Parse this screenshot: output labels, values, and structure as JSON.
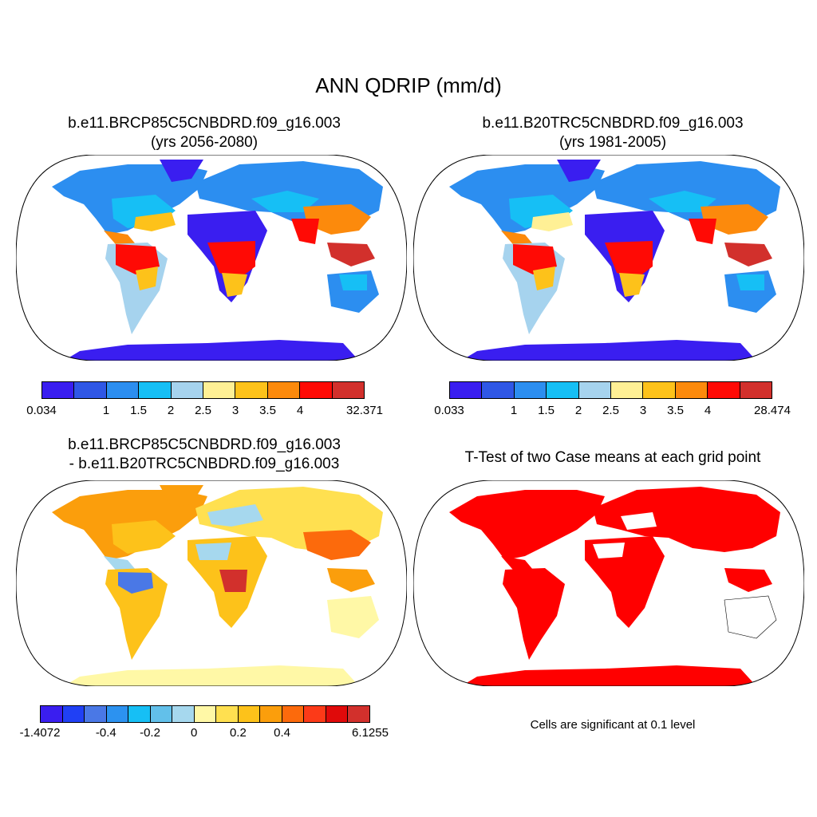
{
  "figure": {
    "title": "ANN QDRIP (mm/d)"
  },
  "panels": {
    "case1": {
      "line1": "b.e11.BRCP85C5CNBDRD.f09_g16.003",
      "line2": "(yrs 2056-2080)"
    },
    "case2": {
      "line1": "b.e11.B20TRC5CNBDRD.f09_g16.003",
      "line2": "(yrs 1981-2005)"
    },
    "diff": {
      "line1": "b.e11.BRCP85C5CNBDRD.f09_g16.003",
      "line2": "- b.e11.B20TRC5CNBDRD.f09_g16.003"
    },
    "ttest": {
      "line1": "T-Test of two Case means at each grid point",
      "note": "Cells are significant at 0.1 level"
    }
  },
  "colorbars": {
    "case1": {
      "colors": [
        "#3a1ef0",
        "#2f57e6",
        "#2c8ef0",
        "#16bff5",
        "#a6d3ee",
        "#fff095",
        "#fdc21a",
        "#fc8a0c",
        "#ff0a05",
        "#d2302c"
      ],
      "labels": [
        "0.034",
        "1",
        "1.5",
        "2",
        "2.5",
        "3",
        "3.5",
        "4",
        "32.371"
      ]
    },
    "case2": {
      "colors": [
        "#3a1ef0",
        "#2f57e6",
        "#2c8ef0",
        "#16bff5",
        "#a6d3ee",
        "#fff095",
        "#fdc21a",
        "#fc8a0c",
        "#ff0a05",
        "#d2302c"
      ],
      "labels": [
        "0.033",
        "1",
        "1.5",
        "2",
        "2.5",
        "3",
        "3.5",
        "4",
        "28.474"
      ]
    },
    "diff": {
      "colors": [
        "#3a1ef0",
        "#2040f5",
        "#4a78e6",
        "#2c92f0",
        "#16bff5",
        "#62c0ea",
        "#a6d8ee",
        "#fff8a6",
        "#ffe050",
        "#fdc21a",
        "#fb9e0c",
        "#fc6a0c",
        "#fc3a18",
        "#e00a0a",
        "#d2302c"
      ],
      "labels": [
        "-1.4072",
        "-0.4",
        "-0.2",
        "0",
        "0.2",
        "0.4",
        "6.1255"
      ]
    }
  }
}
